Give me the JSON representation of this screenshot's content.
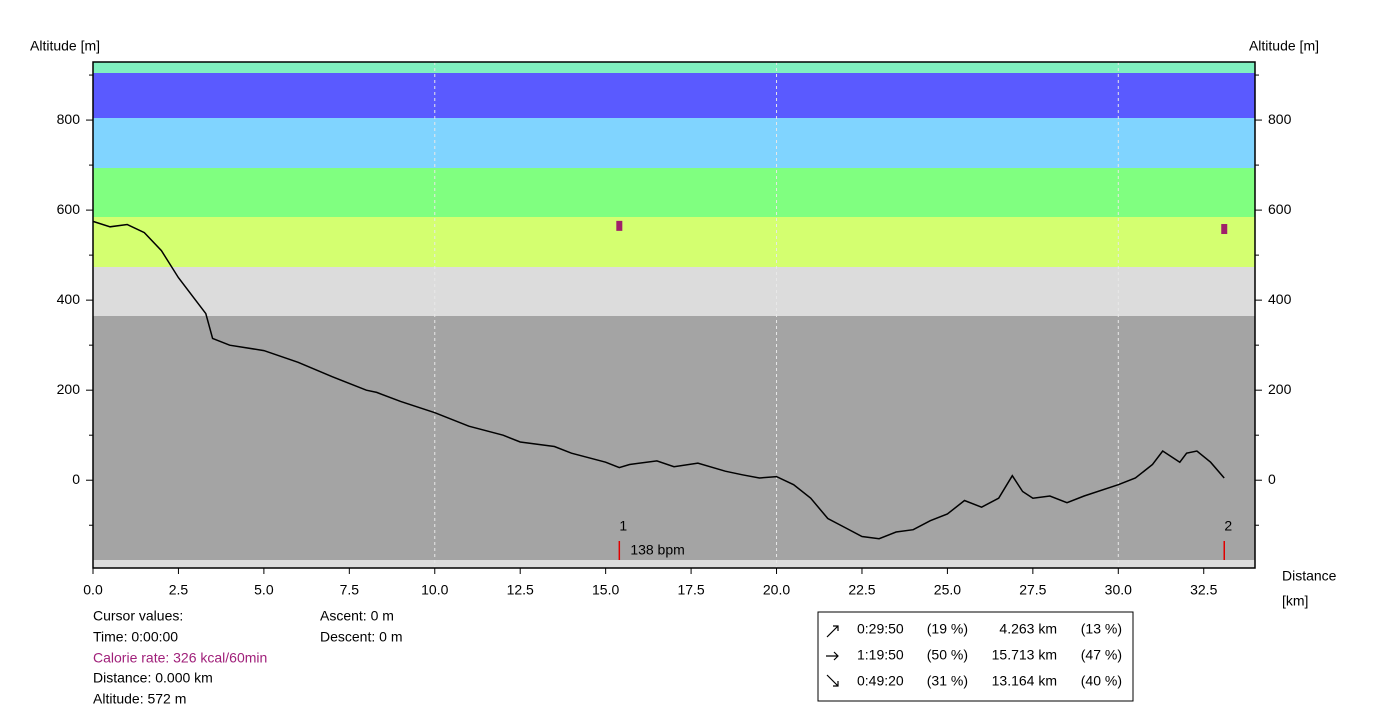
{
  "chart_data": {
    "type": "line",
    "y_axis_label": "Altitude [m]",
    "y2_axis_label": "Altitude [m]",
    "x_axis_label": [
      "Distance",
      "[km]"
    ],
    "x": [
      0,
      0.5,
      1.0,
      1.5,
      2.0,
      2.5,
      3.0,
      3.3,
      3.5,
      4.0,
      5.0,
      6.0,
      7.0,
      8.0,
      8.3,
      9.0,
      10.0,
      11.0,
      12.0,
      12.5,
      13.5,
      14.0,
      15.0,
      15.4,
      15.7,
      16.5,
      17.0,
      17.7,
      18.5,
      19.0,
      19.5,
      20.0,
      20.5,
      21.0,
      21.5,
      22.0,
      22.5,
      23.0,
      23.5,
      24.0,
      24.5,
      25.0,
      25.5,
      26.0,
      26.5,
      26.9,
      27.2,
      27.5,
      28.0,
      28.5,
      29.0,
      30.0,
      30.5,
      31.0,
      31.3,
      31.8,
      32.0,
      32.3,
      32.7,
      33.1
    ],
    "values": [
      575,
      563,
      568,
      550,
      510,
      450,
      400,
      370,
      315,
      300,
      288,
      262,
      230,
      200,
      195,
      175,
      150,
      120,
      100,
      85,
      75,
      60,
      40,
      28,
      35,
      43,
      30,
      38,
      20,
      12,
      5,
      8,
      -10,
      -40,
      -85,
      -105,
      -125,
      -130,
      -115,
      -110,
      -90,
      -75,
      -45,
      -60,
      -40,
      10,
      -25,
      -40,
      -35,
      -50,
      -35,
      -10,
      5,
      35,
      65,
      40,
      60,
      65,
      40,
      5
    ],
    "color": "#000000",
    "xlim": [
      0,
      34
    ],
    "xticks": [
      {
        "value": 0,
        "label": "0.0"
      },
      2.5,
      {
        "value": 5,
        "label": "5.0"
      },
      7.5,
      {
        "value": 10,
        "label": "10.0"
      },
      12.5,
      {
        "value": 15,
        "label": "15.0"
      },
      17.5,
      {
        "value": 20,
        "label": "20.0"
      },
      22.5,
      {
        "value": 25,
        "label": "25.0"
      },
      27.5,
      {
        "value": 30,
        "label": "30.0"
      },
      32.5
    ],
    "xgrid": [
      10,
      20,
      30
    ],
    "ylim": [
      -195,
      929
    ],
    "yticks": [
      0,
      200,
      400,
      600,
      800
    ],
    "yminor": [
      -100,
      100,
      300,
      500,
      700,
      900
    ],
    "y2lim": [
      -195,
      929
    ],
    "y2ticks": [
      0,
      200,
      400,
      600,
      800
    ],
    "laps": [
      {
        "label": "1",
        "x": 15.4,
        "marker": 565
      },
      {
        "label": "2",
        "x": 33.1,
        "marker": 558
      }
    ],
    "lap_annotation": "138 bpm"
  },
  "cursor_panel": [
    "Cursor values:",
    "Time: 0:00:00",
    "Calorie rate: 326 kcal/60min",
    "Distance: 0.000 km",
    "Altitude: 572 m"
  ],
  "ascent_panel": [
    "Ascent: 0 m",
    "Descent: 0 m"
  ],
  "stats_table": {
    "rows": [
      [
        "0:29:50",
        "(19 %)",
        "4.263 km",
        "(13 %)"
      ],
      [
        "1:19:50",
        "(50 %)",
        "15.713 km",
        "(47 %)"
      ],
      [
        "0:49:20",
        "(31 %)",
        "13.164 km",
        "(40 %)"
      ]
    ]
  }
}
